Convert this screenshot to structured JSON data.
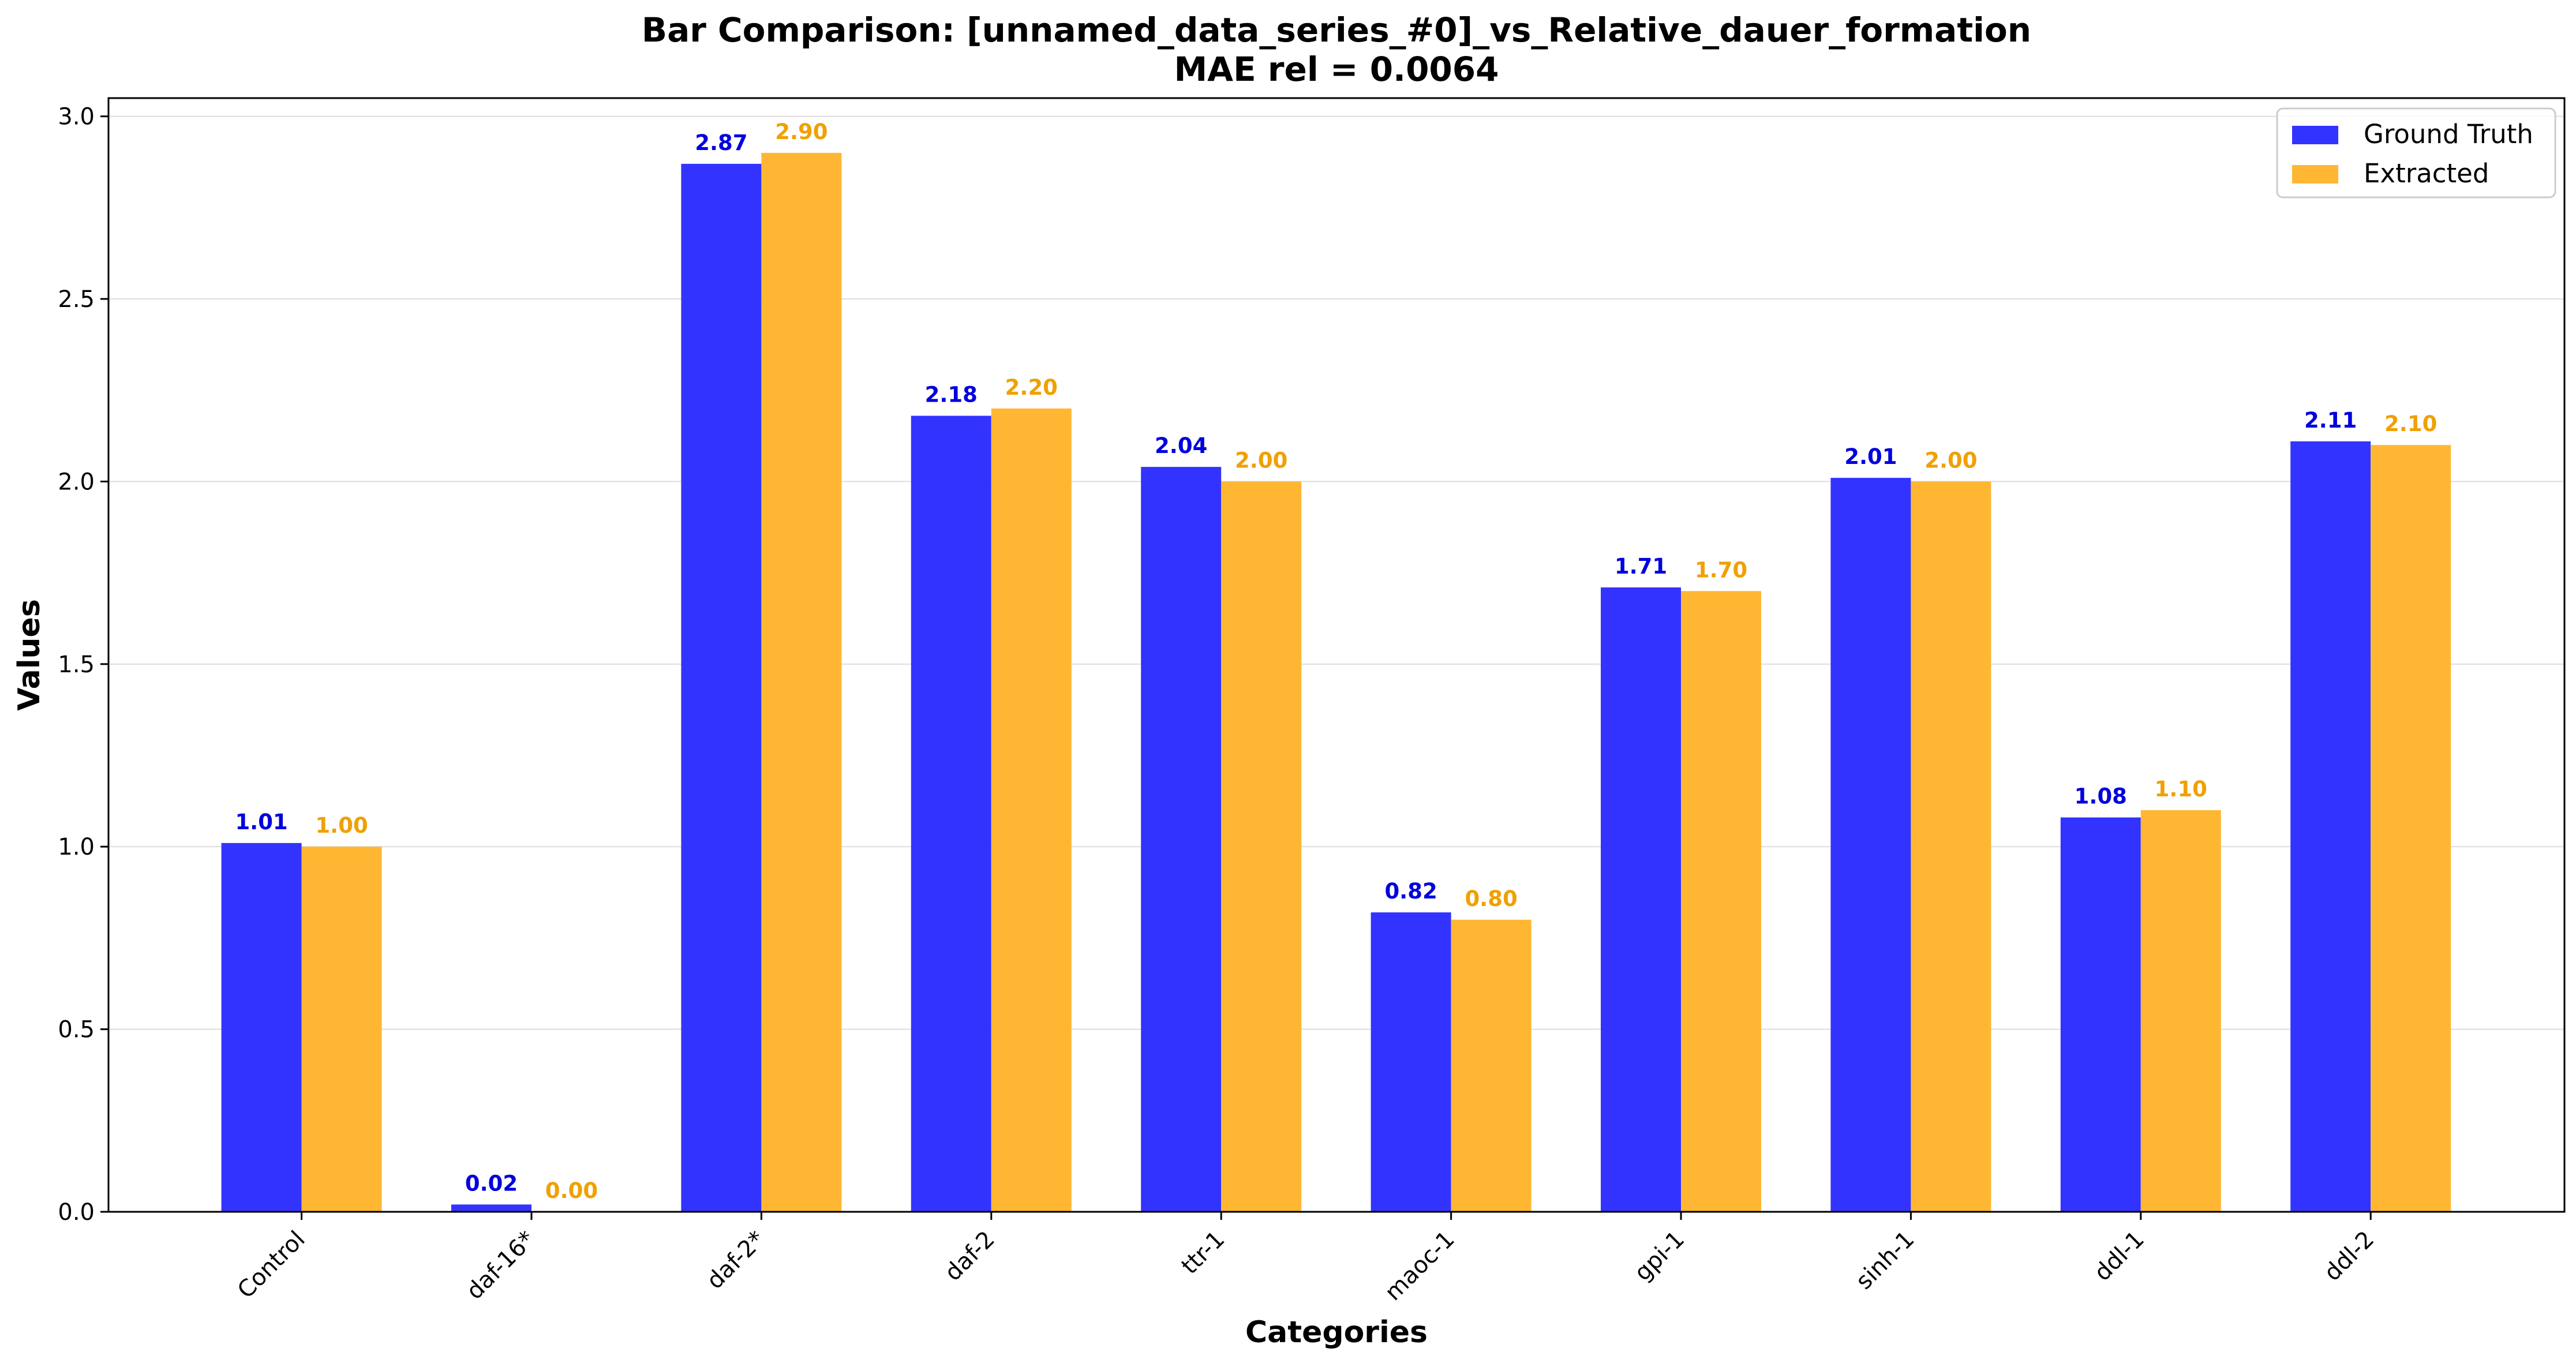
{
  "chart_data": {
    "type": "bar",
    "title": "Bar Comparison: [unnamed_data_series_#0]_vs_Relative_dauer_formation",
    "subtitle": "MAE rel = 0.0064",
    "xlabel": "Categories",
    "ylabel": "Values",
    "categories": [
      "Control",
      "daf-16*",
      "daf-2*",
      "daf-2",
      "ttr-1",
      "maoc-1",
      "gpi-1",
      "sinh-1",
      "ddl-1",
      "ddl-2"
    ],
    "series": [
      {
        "name": "Ground Truth",
        "color": "#3333ff",
        "label_color": "#0000dd",
        "values": [
          1.01,
          0.02,
          2.87,
          2.18,
          2.04,
          0.82,
          1.71,
          2.01,
          1.08,
          2.11
        ],
        "labels": [
          "1.01",
          "0.02",
          "2.87",
          "2.18",
          "2.04",
          "0.82",
          "1.71",
          "2.01",
          "1.08",
          "2.11"
        ]
      },
      {
        "name": "Extracted",
        "color": "#ffb733",
        "label_color": "#f0a000",
        "values": [
          1.0,
          0.0,
          2.9,
          2.2,
          2.0,
          0.8,
          1.7,
          2.0,
          1.1,
          2.1
        ],
        "labels": [
          "1.00",
          "0.00",
          "2.90",
          "2.20",
          "2.00",
          "0.80",
          "1.70",
          "2.00",
          "1.10",
          "2.10"
        ]
      }
    ],
    "ylim": [
      0,
      3.05
    ],
    "yticks": [
      "0.0",
      "0.5",
      "1.0",
      "1.5",
      "2.0",
      "2.5",
      "3.0"
    ],
    "grid": "y",
    "legend_position": "top-right"
  }
}
